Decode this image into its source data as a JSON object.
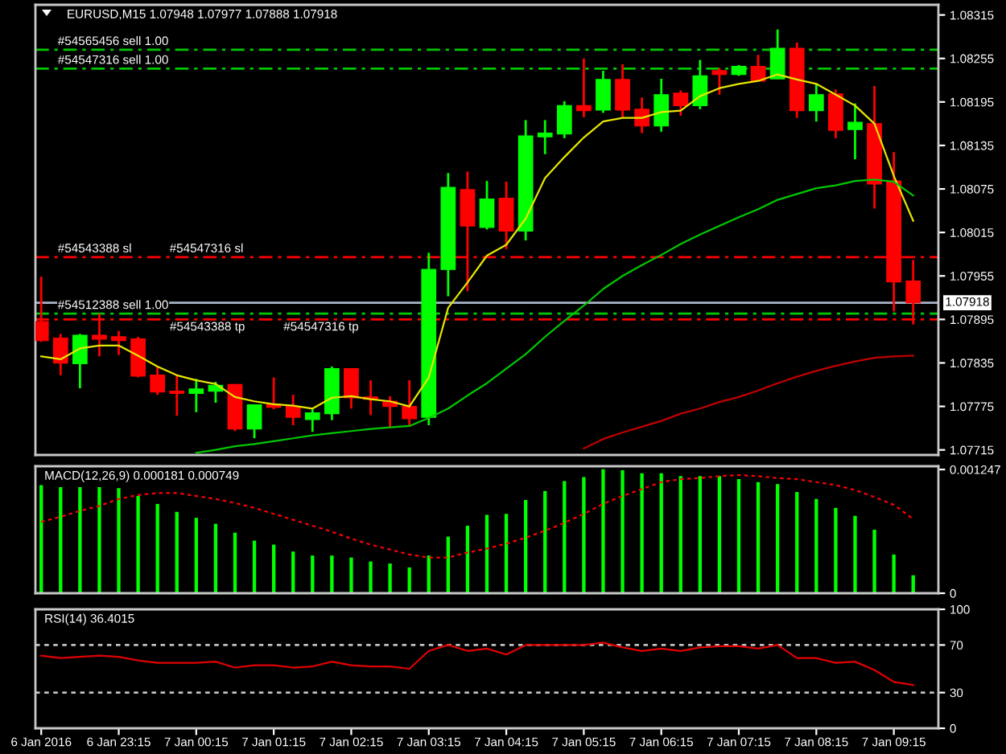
{
  "chart_data": [
    {
      "type": "candlestick",
      "title": "EURUSD,M15 1.07948 1.07977 1.07888 1.07918",
      "categories": [
        "6 Jan 2016",
        null,
        null,
        null,
        "6 Jan 23:15",
        null,
        null,
        null,
        "7 Jan 00:15",
        null,
        null,
        null,
        "7 Jan 01:15",
        null,
        null,
        null,
        "7 Jan 02:15",
        null,
        null,
        null,
        "7 Jan 03:15",
        null,
        null,
        null,
        "7 Jan 04:15",
        null,
        null,
        null,
        "7 Jan 05:15",
        null,
        null,
        null,
        "7 Jan 06:15",
        null,
        null,
        null,
        "7 Jan 07:15",
        null,
        null,
        null,
        "7 Jan 08:15",
        null,
        null,
        null,
        "7 Jan 09:15",
        null
      ],
      "ohlc": [
        [
          1.07892,
          1.07954,
          1.07864,
          1.07866
        ],
        [
          1.07869,
          1.07875,
          1.07818,
          1.07835
        ],
        [
          1.07834,
          1.07875,
          1.078,
          1.07873
        ],
        [
          1.07873,
          1.07903,
          1.07844,
          1.07868
        ],
        [
          1.07871,
          1.07879,
          1.07846,
          1.07866
        ],
        [
          1.07868,
          1.07871,
          1.07815,
          1.07817
        ],
        [
          1.07818,
          1.0783,
          1.07791,
          1.07795
        ],
        [
          1.07796,
          1.07818,
          1.07762,
          1.07793
        ],
        [
          1.07793,
          1.07813,
          1.07767,
          1.07799
        ],
        [
          1.07796,
          1.07809,
          1.0778,
          1.07804
        ],
        [
          1.07805,
          1.07806,
          1.07741,
          1.07744
        ],
        [
          1.07744,
          1.07777,
          1.07731,
          1.07777
        ],
        [
          1.07778,
          1.07815,
          1.07771,
          1.07774
        ],
        [
          1.07775,
          1.07791,
          1.07749,
          1.0776
        ],
        [
          1.07757,
          1.07771,
          1.0774,
          1.07766
        ],
        [
          1.07765,
          1.0783,
          1.07756,
          1.07827
        ],
        [
          1.07827,
          1.07827,
          1.07772,
          1.07787
        ],
        [
          1.07788,
          1.07811,
          1.07763,
          1.07785
        ],
        [
          1.07782,
          1.07789,
          1.07745,
          1.07775
        ],
        [
          1.07775,
          1.07811,
          1.07749,
          1.07758
        ],
        [
          1.0776,
          1.07987,
          1.07749,
          1.07964
        ],
        [
          1.07964,
          1.08097,
          1.07927,
          1.08077
        ],
        [
          1.08074,
          1.08099,
          1.07934,
          1.08024
        ],
        [
          1.08022,
          1.08086,
          1.08019,
          1.08061
        ],
        [
          1.08062,
          1.08085,
          1.07992,
          1.08017
        ],
        [
          1.08017,
          1.0817,
          1.08004,
          1.08148
        ],
        [
          1.08147,
          1.0817,
          1.08123,
          1.08152
        ],
        [
          1.08151,
          1.08196,
          1.08145,
          1.0819
        ],
        [
          1.0819,
          1.08255,
          1.08174,
          1.08183
        ],
        [
          1.08184,
          1.08238,
          1.0818,
          1.08226
        ],
        [
          1.08226,
          1.08247,
          1.08174,
          1.08184
        ],
        [
          1.08185,
          1.08201,
          1.08152,
          1.08162
        ],
        [
          1.08162,
          1.08227,
          1.08154,
          1.08205
        ],
        [
          1.08207,
          1.08211,
          1.08176,
          1.0819
        ],
        [
          1.0819,
          1.08253,
          1.08185,
          1.08231
        ],
        [
          1.08238,
          1.08242,
          1.08205,
          1.08233
        ],
        [
          1.08233,
          1.08246,
          1.08231,
          1.08244
        ],
        [
          1.08244,
          1.0826,
          1.08224,
          1.08224
        ],
        [
          1.08227,
          1.08295,
          1.08227,
          1.08269
        ],
        [
          1.08269,
          1.08277,
          1.08173,
          1.08183
        ],
        [
          1.08183,
          1.0822,
          1.08168,
          1.08205
        ],
        [
          1.08206,
          1.08212,
          1.08145,
          1.08156
        ],
        [
          1.08157,
          1.08193,
          1.08116,
          1.08167
        ],
        [
          1.08165,
          1.08217,
          1.08048,
          1.08082
        ],
        [
          1.08086,
          1.08126,
          1.07906,
          1.07947
        ],
        [
          1.07948,
          1.07977,
          1.07888,
          1.07918
        ]
      ],
      "colors": [
        "#ff0000",
        "#ff0000",
        "#00ff00",
        "#ff0000",
        "#ff0000",
        "#ff0000",
        "#ff0000",
        "#ff0000",
        "#00ff00",
        "#00ff00",
        "#ff0000",
        "#00ff00",
        "#ff0000",
        "#ff0000",
        "#00ff00",
        "#00ff00",
        "#ff0000",
        "#ff0000",
        "#ff0000",
        "#ff0000",
        "#00ff00",
        "#00ff00",
        "#ff0000",
        "#00ff00",
        "#ff0000",
        "#00ff00",
        "#00ff00",
        "#00ff00",
        "#ff0000",
        "#00ff00",
        "#ff0000",
        "#ff0000",
        "#00ff00",
        "#ff0000",
        "#00ff00",
        "#ff0000",
        "#00ff00",
        "#ff0000",
        "#00ff00",
        "#ff0000",
        "#00ff00",
        "#ff0000",
        "#00ff00",
        "#ff0000",
        "#ff0000",
        "#ff0000"
      ],
      "series": [
        {
          "type": "line",
          "color": "#e6e600",
          "values": [
            1.07844,
            1.0784,
            1.07855,
            1.07859,
            1.07859,
            1.07845,
            1.0783,
            1.07818,
            1.07811,
            1.07806,
            1.07788,
            1.07782,
            1.07778,
            1.07776,
            1.07772,
            1.07787,
            1.07789,
            1.07785,
            1.07782,
            1.07775,
            1.07815,
            1.07911,
            1.07946,
            1.07983,
            1.07998,
            1.08034,
            1.0809,
            1.08119,
            1.08146,
            1.08168,
            1.08173,
            1.08173,
            1.08181,
            1.08183,
            1.08203,
            1.08214,
            1.0822,
            1.08224,
            1.08233,
            1.08226,
            1.0822,
            1.08205,
            1.0819,
            1.08165,
            1.08093,
            1.08031
          ]
        },
        {
          "type": "line",
          "color": "#00c800",
          "values": [
            null,
            null,
            null,
            null,
            null,
            null,
            null,
            null,
            1.07711,
            1.07715,
            1.0772,
            1.07723,
            1.07727,
            1.07731,
            1.07735,
            1.07738,
            1.07741,
            1.07744,
            1.07746,
            1.07748,
            1.07759,
            1.07772,
            1.0779,
            1.07807,
            1.07827,
            1.07847,
            1.07871,
            1.07893,
            1.07914,
            1.07937,
            1.07955,
            1.0797,
            1.07984,
            1.07999,
            1.08012,
            1.08024,
            1.08036,
            1.08047,
            1.0806,
            1.08068,
            1.08076,
            1.0808,
            1.08086,
            1.08088,
            1.08085,
            1.08066
          ]
        },
        {
          "type": "line",
          "color": "#c00000",
          "values": [
            null,
            null,
            null,
            null,
            null,
            null,
            null,
            null,
            null,
            null,
            null,
            null,
            null,
            null,
            null,
            null,
            null,
            null,
            null,
            null,
            null,
            null,
            null,
            null,
            null,
            null,
            null,
            null,
            1.07717,
            1.0773,
            1.07739,
            1.07747,
            1.07755,
            1.07765,
            1.07772,
            1.07781,
            1.07788,
            1.07797,
            1.07807,
            1.07816,
            1.07824,
            1.07831,
            1.07837,
            1.07842,
            1.07844,
            1.07845
          ]
        }
      ],
      "ylim": [
        1.07708,
        1.08329
      ],
      "yticks": [
        1.07715,
        1.07775,
        1.07835,
        1.07895,
        1.07955,
        1.08015,
        1.08075,
        1.08135,
        1.08195,
        1.08255,
        1.08315
      ],
      "ref_lines": [
        {
          "axis": "y",
          "value": 1.08267,
          "label": "#54565456 sell 1.00",
          "color": "#00c800",
          "line_style": "dashdot"
        },
        {
          "axis": "y",
          "value": 1.08241,
          "label": "#54547316 sell 1.00",
          "color": "#00c800",
          "line_style": "dashdot"
        },
        {
          "axis": "y",
          "value": 1.07981,
          "label": "#54543388 sl",
          "color": "#ff0000",
          "line_style": "dashdot"
        },
        {
          "axis": "y",
          "value": 1.07918,
          "label": "1.07918",
          "color": "#a8b4c8",
          "line_style": "solid"
        },
        {
          "axis": "y",
          "value": 1.07903,
          "label": "#54512388 sell 1.00",
          "color": "#00c800",
          "line_style": "dashdot"
        },
        {
          "axis": "y",
          "value": 1.07895,
          "label": "#54543388 tp",
          "color": "#ff0000",
          "line_style": "dashdot"
        }
      ],
      "annotations": [
        {
          "text": "#54547316 sl",
          "y": 1.07981
        },
        {
          "text": "#54547316 tp",
          "y": 1.07895
        }
      ],
      "tick_labels": "y"
    },
    {
      "type": "bar",
      "title": "MACD(12,26,9) 0.000181 0.000749",
      "categories": [
        "6 Jan 2016",
        null,
        null,
        null,
        "6 Jan 23:15",
        null,
        null,
        null,
        "7 Jan 00:15",
        null,
        null,
        null,
        "7 Jan 01:15",
        null,
        null,
        null,
        "7 Jan 02:15",
        null,
        null,
        null,
        "7 Jan 03:15",
        null,
        null,
        null,
        "7 Jan 04:15",
        null,
        null,
        null,
        "7 Jan 05:15",
        null,
        null,
        null,
        "7 Jan 06:15",
        null,
        null,
        null,
        "7 Jan 07:15",
        null,
        null,
        null,
        "7 Jan 08:15",
        null,
        null,
        null,
        "7 Jan 09:15",
        null
      ],
      "series": [
        {
          "type": "bar",
          "color": "#00ff00",
          "values": [
            0.00109,
            0.00107,
            0.00107,
            0.00107,
            0.00106,
            0.00098,
            0.0009,
            0.00082,
            0.00076,
            0.0007,
            0.00061,
            0.00053,
            0.00049,
            0.00042,
            0.00038,
            0.00038,
            0.00036,
            0.00032,
            0.0003,
            0.00026,
            0.00038,
            0.00057,
            0.00068,
            0.00079,
            0.0008,
            0.00094,
            0.00103,
            0.00113,
            0.00117,
            0.00125,
            0.00124,
            0.00121,
            0.00121,
            0.00118,
            0.00118,
            0.00118,
            0.00115,
            0.00112,
            0.0011,
            0.00102,
            0.00095,
            0.00086,
            0.00078,
            0.00064,
            0.00039,
            0.000181
          ]
        },
        {
          "type": "line",
          "color": "#ff0000",
          "line_style": "dotted",
          "values": [
            0.00072,
            0.00077,
            0.00083,
            0.00088,
            0.00095,
            0.00099,
            0.00101,
            0.00101,
            0.00098,
            0.00095,
            0.00091,
            0.00086,
            0.0008,
            0.00074,
            0.00068,
            0.00062,
            0.00055,
            0.00049,
            0.00044,
            0.00039,
            0.00036,
            0.00036,
            0.00041,
            0.00045,
            0.0005,
            0.00056,
            0.00063,
            0.00071,
            0.0008,
            0.0009,
            0.00098,
            0.00105,
            0.00112,
            0.00115,
            0.00116,
            0.00118,
            0.00119,
            0.00118,
            0.00116,
            0.00115,
            0.00112,
            0.00109,
            0.00104,
            0.00097,
            0.00089,
            0.000749
          ]
        }
      ],
      "ylim": [
        0,
        0.00128
      ],
      "yticks": [
        0,
        0.001247
      ],
      "tick_labels": "y"
    },
    {
      "type": "line",
      "title": "RSI(14) 36.4015",
      "categories": [
        "6 Jan 2016",
        null,
        null,
        null,
        "6 Jan 23:15",
        null,
        null,
        null,
        "7 Jan 00:15",
        null,
        null,
        null,
        "7 Jan 01:15",
        null,
        null,
        null,
        "7 Jan 02:15",
        null,
        null,
        null,
        "7 Jan 03:15",
        null,
        null,
        null,
        "7 Jan 04:15",
        null,
        null,
        null,
        "7 Jan 05:15",
        null,
        null,
        null,
        "7 Jan 06:15",
        null,
        null,
        null,
        "7 Jan 07:15",
        null,
        null,
        null,
        "7 Jan 08:15",
        null,
        null,
        null,
        "7 Jan 09:15",
        null
      ],
      "series": [
        {
          "color": "#e00000",
          "values": [
            61,
            59,
            60,
            61,
            60,
            57,
            55,
            55,
            55,
            56,
            51,
            53,
            53,
            51,
            52,
            56,
            53,
            52,
            52,
            50,
            65,
            70,
            65,
            67,
            62,
            70,
            70,
            70,
            70,
            72,
            68,
            65,
            67,
            65,
            68,
            69,
            69,
            67,
            70,
            59,
            59,
            55,
            56,
            49,
            39,
            36.4015
          ]
        }
      ],
      "ylim": [
        0,
        100
      ],
      "yticks": [
        0,
        30,
        70,
        100
      ],
      "ref_lines": [
        {
          "axis": "y",
          "value": 70,
          "color": "#c0c0c0",
          "line_style": "dotted"
        },
        {
          "axis": "y",
          "value": 30,
          "color": "#c0c0c0",
          "line_style": "dotted"
        }
      ]
    }
  ]
}
